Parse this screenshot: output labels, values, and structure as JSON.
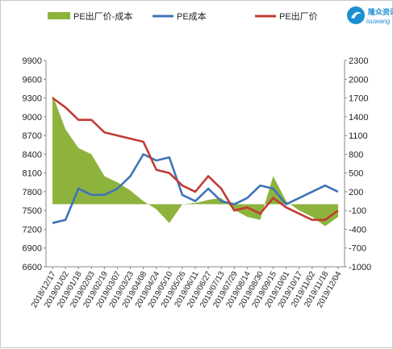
{
  "chart_data": {
    "type": "line",
    "title": "",
    "x": [
      "2018/12/17",
      "2019/01/02",
      "2019/01/18",
      "2019/02/03",
      "2019/02/19",
      "2019/03/07",
      "2019/03/23",
      "2019/04/08",
      "2019/04/24",
      "2019/05/10",
      "2019/05/26",
      "2019/06/11",
      "2019/06/27",
      "2019/07/13",
      "2019/07/29",
      "2019/08/14",
      "2019/08/30",
      "2019/09/15",
      "2019/10/01",
      "2019/10/17",
      "2019/11/02",
      "2019/11/18",
      "2019/12/04"
    ],
    "left_axis": {
      "ylim": [
        6600,
        9900
      ],
      "ticks": [
        6600,
        6900,
        7200,
        7500,
        7800,
        8100,
        8400,
        8700,
        9000,
        9300,
        9600,
        9900
      ]
    },
    "right_axis": {
      "ylim": [
        -1000,
        2300
      ],
      "ticks": [
        -1000,
        -700,
        -400,
        -100,
        200,
        500,
        800,
        1100,
        1400,
        1700,
        2000,
        2300
      ]
    },
    "series": [
      {
        "name": "PE出厂价-成本",
        "type": "area",
        "axis": "right",
        "color": "#8db33c",
        "values": [
          1750,
          1200,
          900,
          800,
          450,
          350,
          220,
          50,
          -80,
          -300,
          0,
          20,
          70,
          100,
          -90,
          -200,
          -250,
          450,
          50,
          -100,
          -200,
          -350,
          -200
        ]
      },
      {
        "name": "PE成本",
        "type": "line",
        "axis": "left",
        "color": "#3f73b9",
        "values": [
          7300,
          7350,
          7850,
          7750,
          7750,
          7850,
          8050,
          8400,
          8300,
          8350,
          7750,
          7650,
          7850,
          7650,
          7600,
          7700,
          7900,
          7850,
          7600,
          7700,
          7800,
          7900,
          7800
        ]
      },
      {
        "name": "PE出厂价",
        "type": "line",
        "axis": "left",
        "color": "#c23b34",
        "values": [
          9300,
          9150,
          8950,
          8950,
          8750,
          8700,
          8650,
          8600,
          8150,
          8100,
          7900,
          7800,
          8050,
          7850,
          7500,
          7550,
          7450,
          7700,
          7550,
          7450,
          7350,
          7350,
          7500
        ]
      }
    ],
    "legend": {
      "position": "top"
    },
    "grid": false
  },
  "logo": {
    "name": "隆众资讯",
    "sub": "isuwang"
  }
}
